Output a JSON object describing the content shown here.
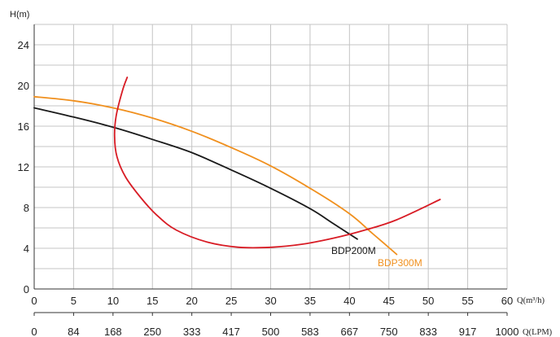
{
  "chart_data": {
    "type": "line",
    "ylabel": "H(m)",
    "x_unit_top": "Q(m³/h)",
    "x_unit_bottom": "Q(LPM)",
    "x_ticks_m3h": [
      "0",
      "5",
      "10",
      "15",
      "20",
      "25",
      "30",
      "35",
      "40",
      "45",
      "50",
      "55",
      "60"
    ],
    "x_ticks_lpm": [
      "0",
      "84",
      "168",
      "250",
      "333",
      "417",
      "500",
      "583",
      "667",
      "750",
      "833",
      "917",
      "1000"
    ],
    "y_ticks": [
      "0",
      "4",
      "8",
      "12",
      "16",
      "20",
      "24"
    ],
    "xlim": [
      0,
      60
    ],
    "ylim": [
      0,
      26
    ],
    "grid": true,
    "series": [
      {
        "name": "BDP200M",
        "color": "#1a1a1a",
        "points": [
          [
            0,
            17.8
          ],
          [
            5,
            16.9
          ],
          [
            10,
            15.9
          ],
          [
            15,
            14.7
          ],
          [
            20,
            13.4
          ],
          [
            25,
            11.7
          ],
          [
            30,
            9.9
          ],
          [
            35,
            7.9
          ],
          [
            38,
            6.4
          ],
          [
            41,
            4.9
          ]
        ]
      },
      {
        "name": "BDP300M",
        "color": "#f0901e",
        "points": [
          [
            0,
            18.9
          ],
          [
            5,
            18.5
          ],
          [
            10,
            17.8
          ],
          [
            15,
            16.8
          ],
          [
            20,
            15.5
          ],
          [
            25,
            13.9
          ],
          [
            30,
            12.1
          ],
          [
            35,
            9.9
          ],
          [
            40,
            7.4
          ],
          [
            43,
            5.4
          ],
          [
            46,
            3.4
          ]
        ]
      },
      {
        "name": "",
        "color": "#d81c25",
        "points": [
          [
            11.8,
            20.8
          ],
          [
            11.2,
            19.5
          ],
          [
            10.4,
            17.0
          ],
          [
            10.2,
            15.0
          ],
          [
            10.5,
            13.0
          ],
          [
            11.6,
            11.0
          ],
          [
            13.5,
            9.0
          ],
          [
            15.5,
            7.3
          ],
          [
            18,
            5.8
          ],
          [
            22,
            4.6
          ],
          [
            26,
            4.1
          ],
          [
            30,
            4.1
          ],
          [
            34,
            4.4
          ],
          [
            38,
            5.0
          ],
          [
            42,
            5.8
          ],
          [
            46,
            6.8
          ],
          [
            51.5,
            8.8
          ]
        ]
      }
    ]
  }
}
